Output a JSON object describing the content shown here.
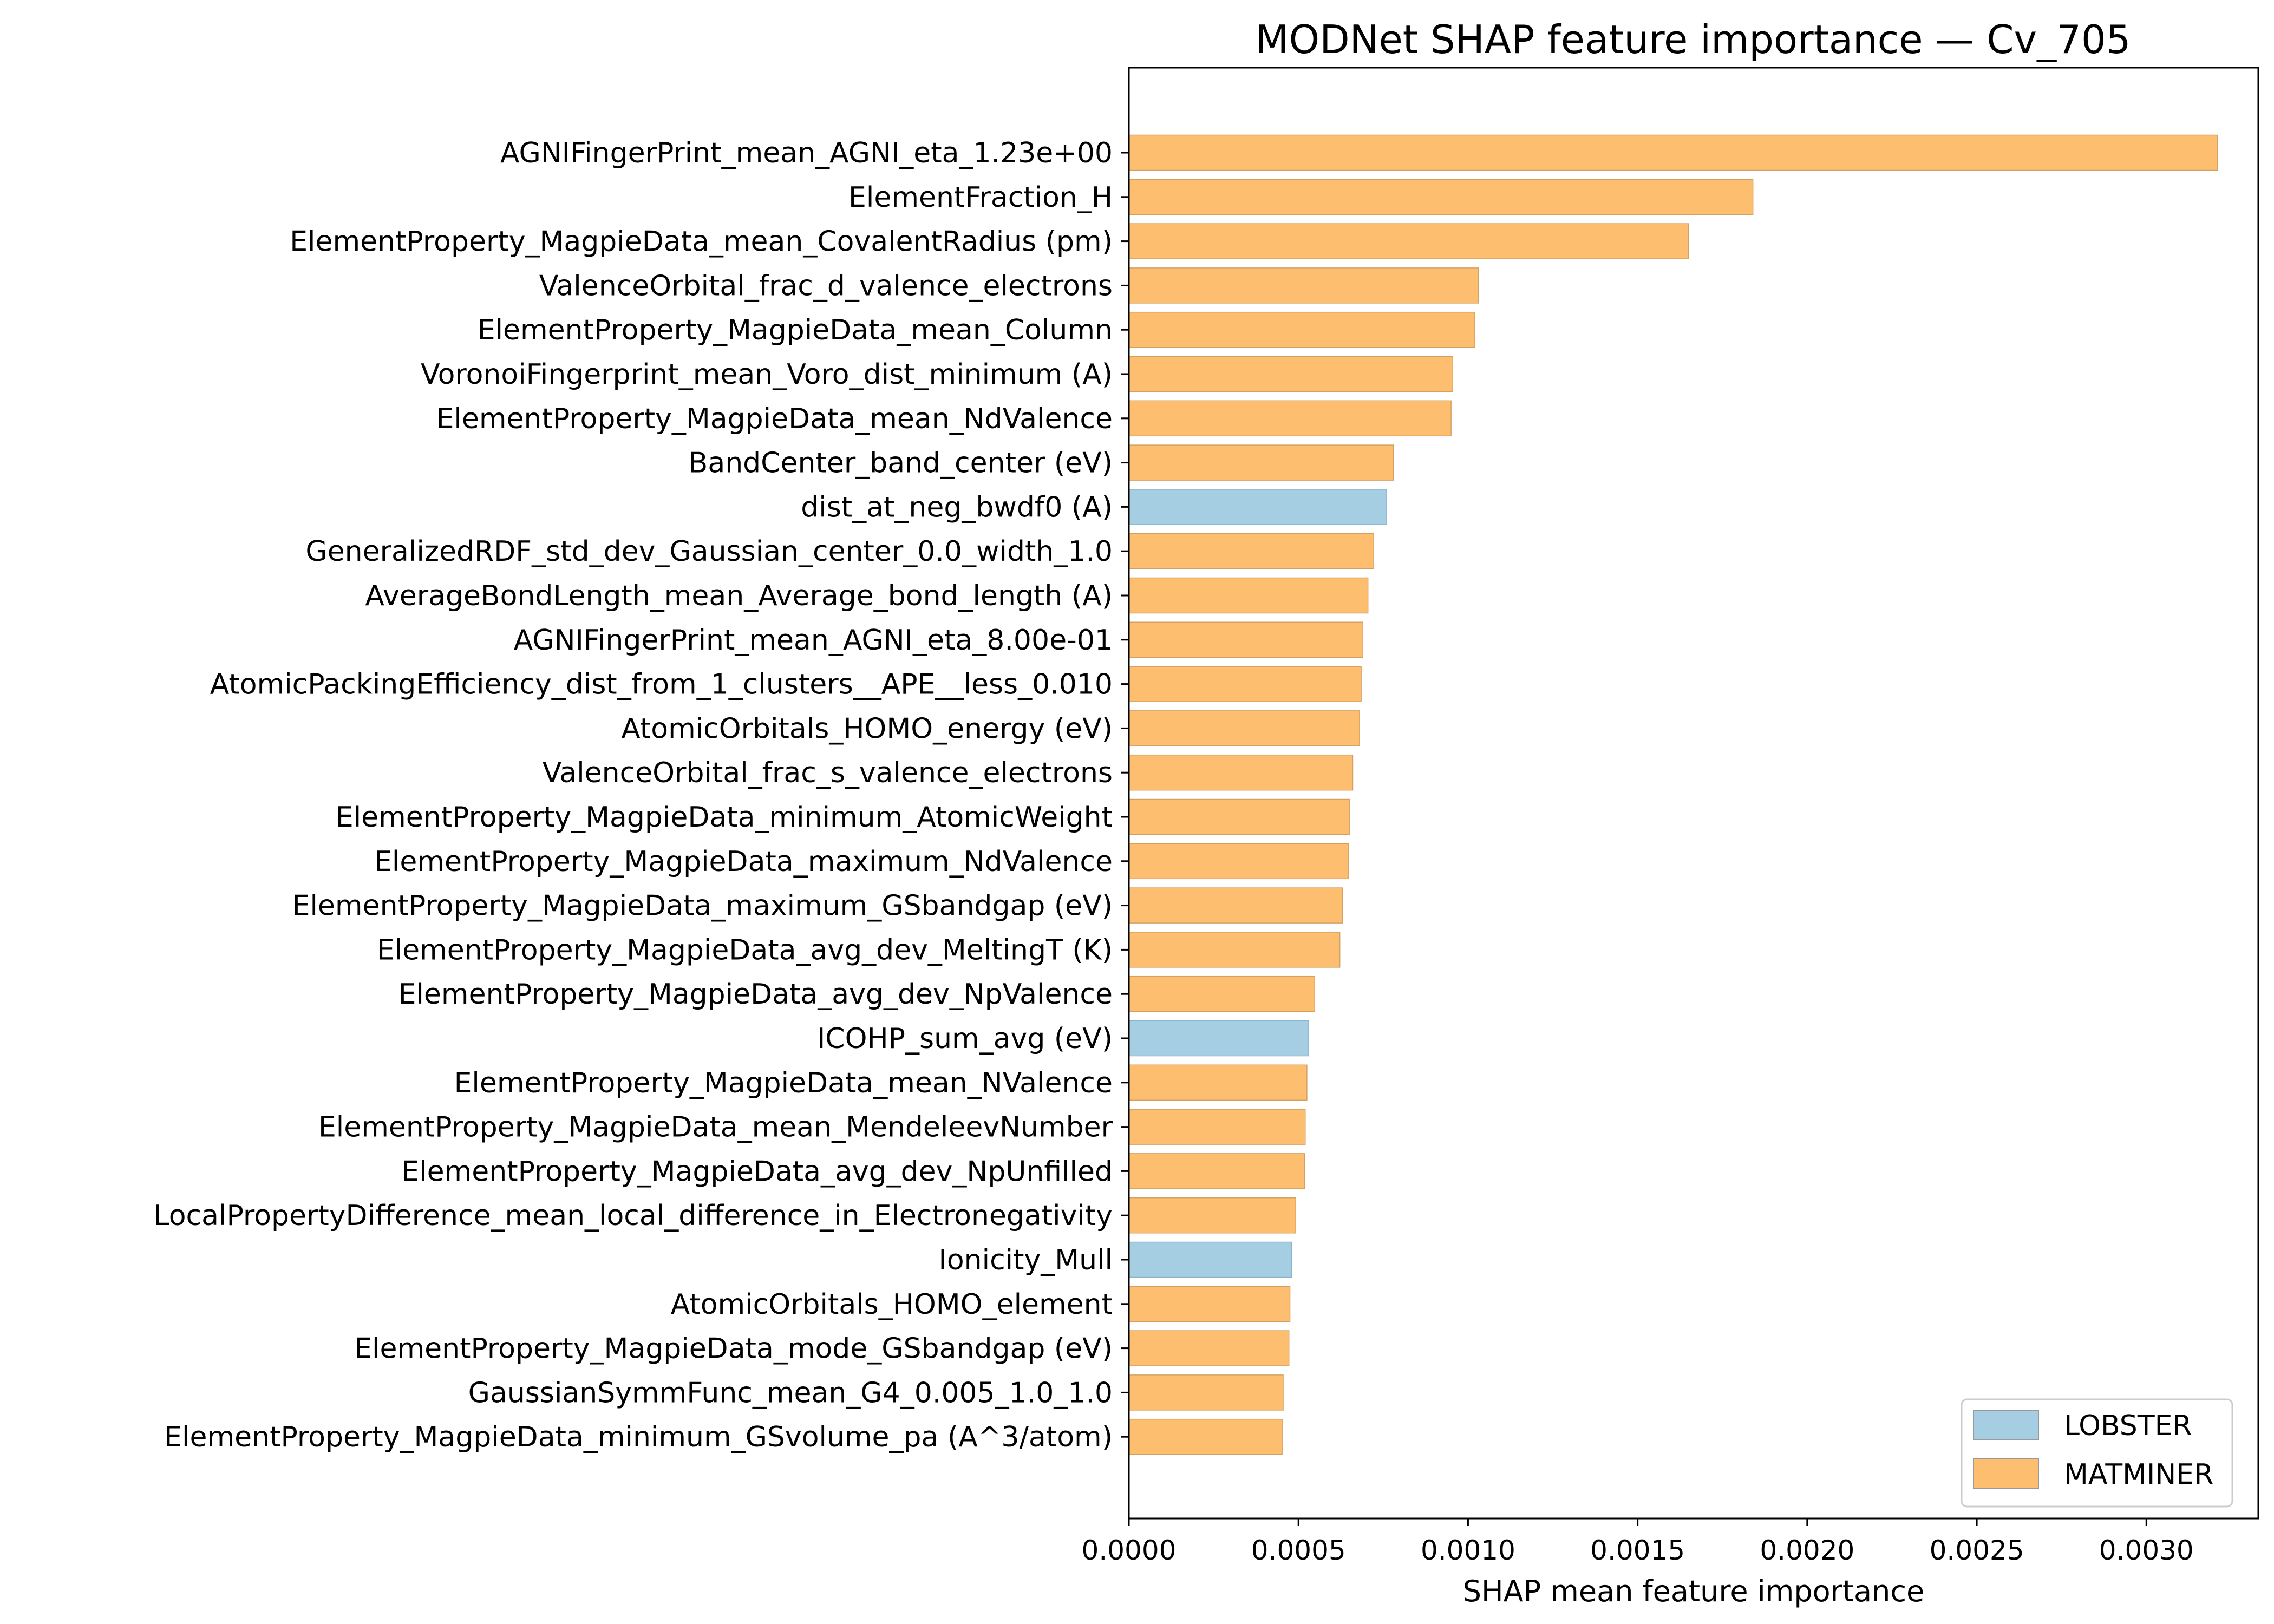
{
  "chart_data": {
    "type": "bar",
    "orientation": "horizontal",
    "title": "MODNet SHAP feature importance — Cv_705",
    "xlabel": "SHAP mean feature importance",
    "ylabel": "",
    "xlim": [
      0,
      0.00333
    ],
    "xticks": [
      0.0,
      0.0005,
      0.001,
      0.0015,
      0.002,
      0.0025,
      0.003
    ],
    "xtick_labels": [
      "0.0000",
      "0.0005",
      "0.0010",
      "0.0015",
      "0.0020",
      "0.0025",
      "0.0030"
    ],
    "grid": false,
    "legend_position": "bottom-right",
    "legend": [
      {
        "name": "LOBSTER",
        "color": "#a6cee3"
      },
      {
        "name": "MATMINER",
        "color": "#fdbf6f"
      }
    ],
    "series_colors": {
      "LOBSTER": "#a6cee3",
      "MATMINER": "#fdbf6f"
    },
    "bars": [
      {
        "feature": "AGNIFingerPrint_mean_AGNI_eta_1.23e+00",
        "value": 0.00321,
        "source": "MATMINER"
      },
      {
        "feature": "ElementFraction_H",
        "value": 0.00184,
        "source": "MATMINER"
      },
      {
        "feature": "ElementProperty_MagpieData_mean_CovalentRadius (pm)",
        "value": 0.00165,
        "source": "MATMINER"
      },
      {
        "feature": "ValenceOrbital_frac_d_valence_electrons",
        "value": 0.00103,
        "source": "MATMINER"
      },
      {
        "feature": "ElementProperty_MagpieData_mean_Column",
        "value": 0.00102,
        "source": "MATMINER"
      },
      {
        "feature": "VoronoiFingerprint_mean_Voro_dist_minimum (A)",
        "value": 0.000955,
        "source": "MATMINER"
      },
      {
        "feature": "ElementProperty_MagpieData_mean_NdValence",
        "value": 0.00095,
        "source": "MATMINER"
      },
      {
        "feature": "BandCenter_band_center (eV)",
        "value": 0.00078,
        "source": "MATMINER"
      },
      {
        "feature": "dist_at_neg_bwdf0 (A)",
        "value": 0.00076,
        "source": "LOBSTER"
      },
      {
        "feature": "GeneralizedRDF_std_dev_Gaussian_center_0.0_width_1.0",
        "value": 0.000722,
        "source": "MATMINER"
      },
      {
        "feature": "AverageBondLength_mean_Average_bond_length (A)",
        "value": 0.000705,
        "source": "MATMINER"
      },
      {
        "feature": "AGNIFingerPrint_mean_AGNI_eta_8.00e-01",
        "value": 0.00069,
        "source": "MATMINER"
      },
      {
        "feature": "AtomicPackingEfficiency_dist_from_1_clusters__APE__less_0.010",
        "value": 0.000685,
        "source": "MATMINER"
      },
      {
        "feature": "AtomicOrbitals_HOMO_energy (eV)",
        "value": 0.00068,
        "source": "MATMINER"
      },
      {
        "feature": "ValenceOrbital_frac_s_valence_electrons",
        "value": 0.00066,
        "source": "MATMINER"
      },
      {
        "feature": "ElementProperty_MagpieData_minimum_AtomicWeight",
        "value": 0.00065,
        "source": "MATMINER"
      },
      {
        "feature": "ElementProperty_MagpieData_maximum_NdValence",
        "value": 0.000648,
        "source": "MATMINER"
      },
      {
        "feature": "ElementProperty_MagpieData_maximum_GSbandgap (eV)",
        "value": 0.00063,
        "source": "MATMINER"
      },
      {
        "feature": "ElementProperty_MagpieData_avg_dev_MeltingT (K)",
        "value": 0.000622,
        "source": "MATMINER"
      },
      {
        "feature": "ElementProperty_MagpieData_avg_dev_NpValence",
        "value": 0.000548,
        "source": "MATMINER"
      },
      {
        "feature": "ICOHP_sum_avg (eV)",
        "value": 0.00053,
        "source": "LOBSTER"
      },
      {
        "feature": "ElementProperty_MagpieData_mean_NValence",
        "value": 0.000525,
        "source": "MATMINER"
      },
      {
        "feature": "ElementProperty_MagpieData_mean_MendeleevNumber",
        "value": 0.00052,
        "source": "MATMINER"
      },
      {
        "feature": "ElementProperty_MagpieData_avg_dev_NpUnfilled",
        "value": 0.000518,
        "source": "MATMINER"
      },
      {
        "feature": "LocalPropertyDifference_mean_local_difference_in_Electronegativity",
        "value": 0.000492,
        "source": "MATMINER"
      },
      {
        "feature": "Ionicity_Mull",
        "value": 0.00048,
        "source": "LOBSTER"
      },
      {
        "feature": "AtomicOrbitals_HOMO_element",
        "value": 0.000475,
        "source": "MATMINER"
      },
      {
        "feature": "ElementProperty_MagpieData_mode_GSbandgap (eV)",
        "value": 0.000472,
        "source": "MATMINER"
      },
      {
        "feature": "GaussianSymmFunc_mean_G4_0.005_1.0_1.0",
        "value": 0.000455,
        "source": "MATMINER"
      },
      {
        "feature": "ElementProperty_MagpieData_minimum_GSvolume_pa (A^3/atom)",
        "value": 0.000452,
        "source": "MATMINER"
      }
    ]
  }
}
